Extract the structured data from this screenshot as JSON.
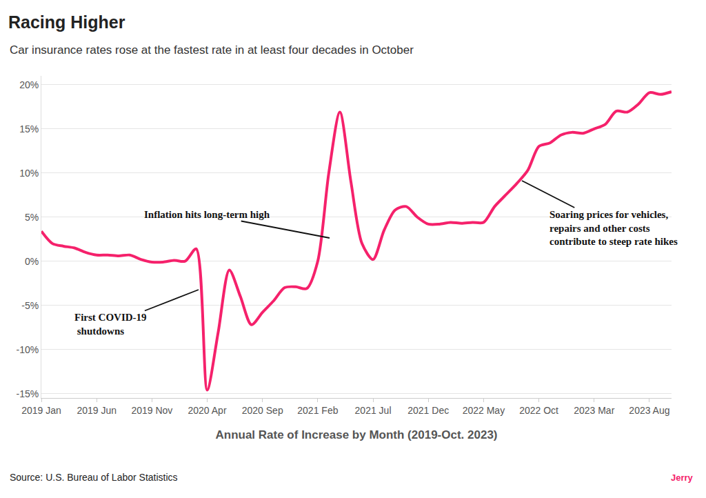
{
  "chart_data": {
    "type": "line",
    "title": "Racing Higher",
    "subtitle": "Car insurance rates rose at the fastest rate in at least four decades in October",
    "x_label": "Annual Rate of Increase by Month (2019-Oct. 2023)",
    "source": "Source: U.S. Bureau of Labor Statistics",
    "logo": "Jerry",
    "categories": [
      "2019 Jan",
      null,
      null,
      null,
      null,
      "2019 Jun",
      null,
      null,
      null,
      null,
      "2019 Nov",
      null,
      null,
      null,
      null,
      "2020 Apr",
      null,
      null,
      null,
      null,
      "2020 Sep",
      null,
      null,
      null,
      null,
      "2021 Feb",
      null,
      null,
      null,
      null,
      "2021 Jul",
      null,
      null,
      null,
      null,
      "2021 Dec",
      null,
      null,
      null,
      null,
      "2022 May",
      null,
      null,
      null,
      null,
      "2022 Oct",
      null,
      null,
      null,
      null,
      "2023 Mar",
      null,
      null,
      null,
      null,
      "2023 Aug",
      null,
      null
    ],
    "values": [
      3.4,
      2.0,
      1.7,
      1.5,
      1.0,
      0.7,
      0.7,
      0.6,
      0.7,
      0.2,
      -0.1,
      -0.1,
      0.1,
      0.0,
      1.4,
      -14.6,
      -8.0,
      -1.0,
      -4.0,
      -7.2,
      -5.8,
      -4.5,
      -3.0,
      -2.9,
      -3.1,
      0.0,
      10.0,
      16.9,
      9.0,
      2.0,
      0.2,
      3.5,
      5.8,
      6.2,
      5.0,
      4.2,
      4.2,
      4.4,
      4.3,
      4.4,
      4.4,
      6.2,
      7.5,
      8.8,
      10.3,
      13.0,
      13.4,
      14.3,
      14.6,
      14.5,
      15.0,
      15.5,
      17.0,
      16.9,
      17.8,
      19.1,
      18.9,
      19.2
    ],
    "color": "#f5216b",
    "line_style": "smooth",
    "ylim": [
      -15.5,
      21
    ],
    "yticks": [
      {
        "value": -15,
        "label": "-15%"
      },
      {
        "value": -10,
        "label": "-10%"
      },
      {
        "value": -5,
        "label": "-5%"
      },
      {
        "value": 0,
        "label": "0%"
      },
      {
        "value": 5,
        "label": "5%"
      },
      {
        "value": 10,
        "label": "10%"
      },
      {
        "value": 15,
        "label": "15%"
      },
      {
        "value": 20,
        "label": "20%"
      }
    ],
    "grid": true,
    "annotations": [
      "First COVID-19\n shutdowns",
      "Inflation hits long-term high",
      "Soaring prices for vehicles,\nrepairs and other costs\ncontribute to steep rate hikes"
    ]
  }
}
